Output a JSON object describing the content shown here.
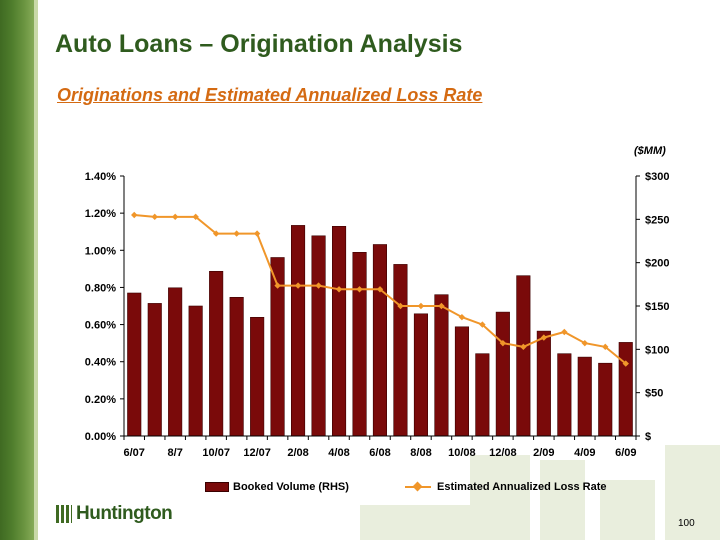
{
  "header": {
    "title": "Auto Loans – Origination Analysis",
    "subtitle": "Originations and Estimated Annualized Loss Rate"
  },
  "chart_data": {
    "type": "bar",
    "categories": [
      "6/07",
      "7/07",
      "8/7",
      "9/07",
      "10/07",
      "11/07",
      "12/07",
      "1/08",
      "2/08",
      "3/08",
      "4/08",
      "5/08",
      "6/08",
      "7/08",
      "8/08",
      "9/08",
      "10/08",
      "11/08",
      "12/08",
      "1/09",
      "2/09",
      "3/09",
      "4/09",
      "5/09",
      "6/09"
    ],
    "x_tick_labels": [
      "6/07",
      "",
      "8/7",
      "",
      "10/07",
      "",
      "12/07",
      "",
      "2/08",
      "",
      "4/08",
      "",
      "6/08",
      "",
      "8/08",
      "",
      "10/08",
      "",
      "12/08",
      "",
      "2/09",
      "",
      "4/09",
      "",
      "6/09"
    ],
    "series": [
      {
        "name": "Booked Volume (RHS)",
        "type": "bar",
        "axis": "right",
        "color": "#7a0a0a",
        "values": [
          165,
          153,
          171,
          150,
          190,
          160,
          137,
          206,
          243,
          231,
          242,
          212,
          221,
          198,
          141,
          163,
          126,
          95,
          143,
          185,
          121,
          95,
          91,
          84,
          108
        ]
      },
      {
        "name": "Estimated Annualized Loss Rate",
        "type": "line",
        "axis": "left",
        "color": "#f0962a",
        "values": [
          1.19,
          1.18,
          1.18,
          1.18,
          1.09,
          1.09,
          1.09,
          0.81,
          0.81,
          0.81,
          0.79,
          0.79,
          0.79,
          0.7,
          0.7,
          0.7,
          0.64,
          0.6,
          0.5,
          0.48,
          0.53,
          0.56,
          0.5,
          0.48,
          0.39
        ]
      }
    ],
    "left_axis": {
      "range": [
        0,
        1.4
      ],
      "ticks": [
        "0.00%",
        "0.20%",
        "0.40%",
        "0.60%",
        "0.80%",
        "1.00%",
        "1.20%",
        "1.40%"
      ]
    },
    "right_axis": {
      "label": "($MM)",
      "range": [
        0,
        300
      ],
      "ticks": [
        "$",
        "$50",
        "$100",
        "$150",
        "$200",
        "$250",
        "$300"
      ]
    },
    "legend_position": "bottom",
    "grid": false
  },
  "footer": {
    "logo_text": "Huntington",
    "page_number": "100"
  }
}
